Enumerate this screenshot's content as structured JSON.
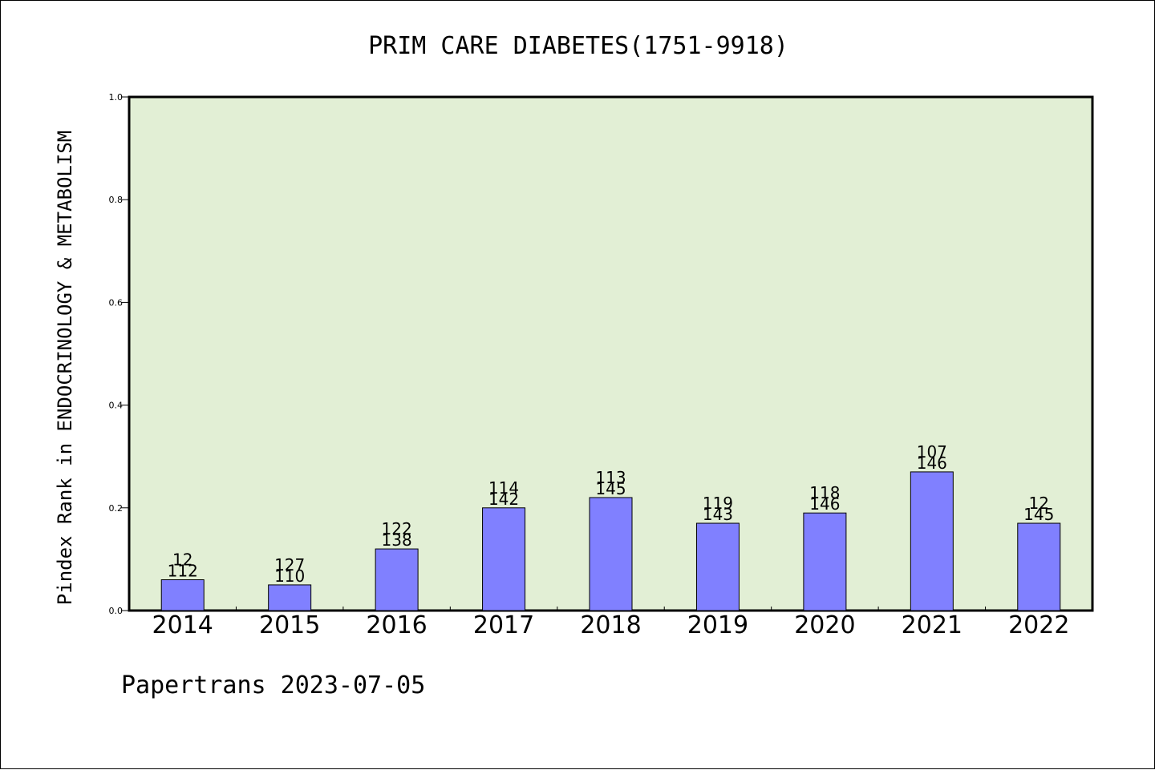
{
  "chart_data": {
    "type": "bar",
    "title": "PRIM CARE DIABETES(1751-9918)",
    "xlabel": "",
    "ylabel": "Pindex Rank in ENDOCRINOLOGY & METABOLISM",
    "ylim": [
      0,
      1.0
    ],
    "yticks": [
      "0.0",
      "0.2",
      "0.4",
      "0.6",
      "0.8",
      "1.0"
    ],
    "categories": [
      "2014",
      "2015",
      "2016",
      "2017",
      "2018",
      "2019",
      "2020",
      "2021",
      "2022"
    ],
    "values": [
      0.06,
      0.05,
      0.12,
      0.2,
      0.22,
      0.17,
      0.19,
      0.27,
      0.17
    ],
    "label_top": [
      "12",
      "127",
      "122",
      "114",
      "113",
      "119",
      "118",
      "107",
      "12"
    ],
    "label_bottom": [
      "112",
      "110",
      "138",
      "142",
      "145",
      "143",
      "146",
      "146",
      "145"
    ],
    "grid": false,
    "colors": {
      "plot_background": "#e2efd5",
      "bar_fill": "#8080ff",
      "bar_stroke": "#000000"
    }
  },
  "footer": {
    "text": "Papertrans 2023-07-05"
  }
}
